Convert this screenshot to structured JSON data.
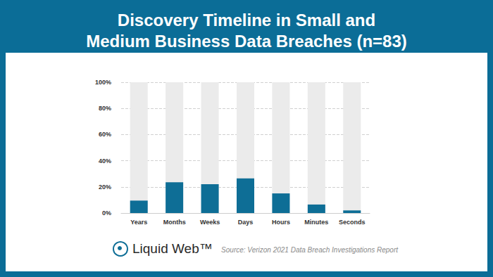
{
  "chart_data": {
    "type": "bar",
    "title": "Discovery Timeline in Small and\nMedium Business Data Breaches (n=83)",
    "categories": [
      "Years",
      "Months",
      "Weeks",
      "Days",
      "Hours",
      "Minutes",
      "Seconds"
    ],
    "values": [
      9.5,
      23.5,
      22,
      26.5,
      15,
      6.5,
      2
    ],
    "color": "#0e6e96",
    "ylim": [
      0,
      100
    ],
    "yticks": [
      {
        "value": 0,
        "label": "0%"
      },
      {
        "value": 20,
        "label": "20%"
      },
      {
        "value": 40,
        "label": "40%"
      },
      {
        "value": 60,
        "label": "60%"
      },
      {
        "value": 80,
        "label": "80%"
      },
      {
        "value": 100,
        "label": "100%"
      }
    ],
    "grid": true,
    "annotations": [
      "Liquid Web™",
      "Source: Verizon 2021 Data Breach Investigations Report"
    ]
  }
}
